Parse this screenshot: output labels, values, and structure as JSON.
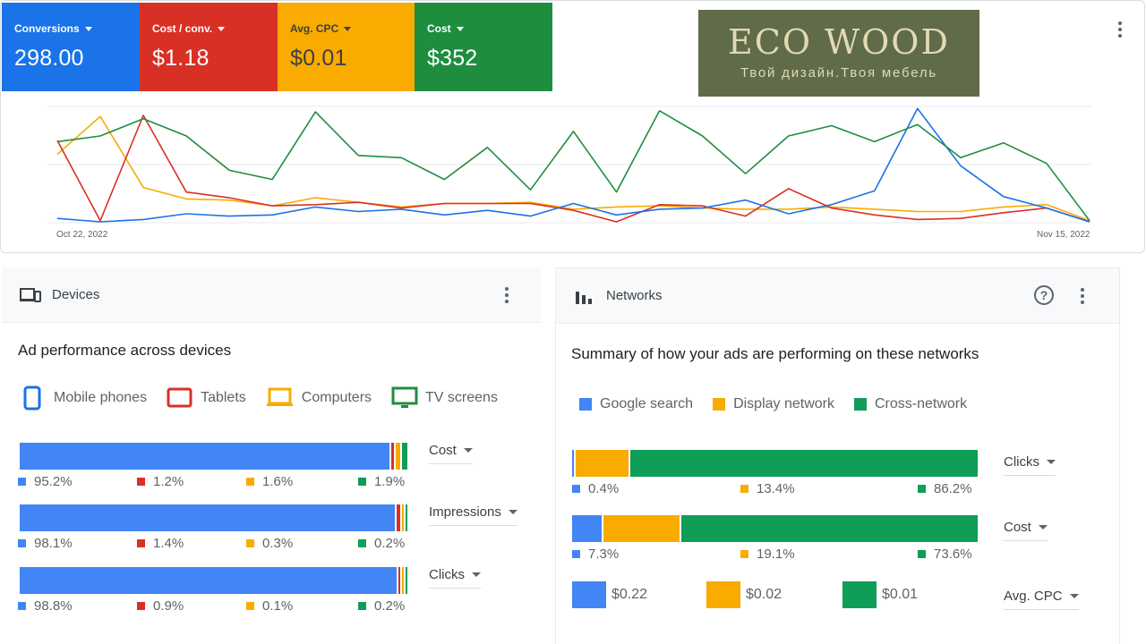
{
  "metrics": {
    "conversions": {
      "label": "Conversions",
      "value": "298.00"
    },
    "cost_per_conv": {
      "label": "Cost / conv.",
      "value": "$1.18"
    },
    "avg_cpc": {
      "label": "Avg. CPC",
      "value": "$0.01"
    },
    "cost": {
      "label": "Cost",
      "value": "$352"
    }
  },
  "logo": {
    "title": "ECO WOOD",
    "tagline": "Твой дизайн.Твоя мебель"
  },
  "chart_data": {
    "type": "line",
    "x_start_label": "Oct 22, 2022",
    "x_end_label": "Nov 15, 2022",
    "ylim": [
      0,
      100
    ],
    "grid": "horizontal",
    "colors": {
      "blue": "#1a73e8",
      "red": "#d93025",
      "yellow": "#f9ab00",
      "green": "#1e8e3e"
    },
    "series": [
      {
        "color": "blue",
        "values": [
          3,
          0,
          2,
          7,
          5,
          6,
          13,
          9,
          11,
          6,
          10,
          5,
          16,
          6,
          11,
          12,
          19,
          7,
          15,
          27,
          99,
          49,
          22,
          12,
          0
        ]
      },
      {
        "color": "red",
        "values": [
          71,
          1,
          93,
          26,
          21,
          14,
          15,
          17,
          12,
          16,
          16,
          16,
          10,
          0,
          15,
          14,
          5,
          29,
          12,
          6,
          2,
          3,
          8,
          12,
          0
        ]
      },
      {
        "color": "yellow",
        "values": [
          59,
          92,
          30,
          20,
          19,
          14,
          21,
          17,
          13,
          16,
          16,
          17,
          11,
          13,
          14,
          12,
          11,
          11,
          13,
          11,
          9,
          9,
          13,
          15,
          1
        ]
      },
      {
        "color": "green",
        "values": [
          70,
          75,
          90,
          75,
          45,
          37,
          96,
          58,
          56,
          37,
          65,
          28,
          79,
          26,
          97,
          75,
          42,
          75,
          84,
          70,
          85,
          56,
          69,
          51,
          1
        ]
      }
    ]
  },
  "devices": {
    "header": "Devices",
    "title": "Ad performance across devices",
    "legend": [
      "Mobile phones",
      "Tablets",
      "Computers",
      "TV screens"
    ],
    "rows": [
      {
        "metric": "Cost",
        "values": [
          "95.2%",
          "1.2%",
          "1.6%",
          "1.9%"
        ],
        "fractions": [
          0.952,
          0.012,
          0.016,
          0.019
        ]
      },
      {
        "metric": "Impressions",
        "values": [
          "98.1%",
          "1.4%",
          "0.3%",
          "0.2%"
        ],
        "fractions": [
          0.981,
          0.014,
          0.003,
          0.002
        ]
      },
      {
        "metric": "Clicks",
        "values": [
          "98.8%",
          "0.9%",
          "0.1%",
          "0.2%"
        ],
        "fractions": [
          0.988,
          0.009,
          0.001,
          0.002
        ]
      }
    ]
  },
  "networks": {
    "header": "Networks",
    "title": "Summary of how your ads are performing on these networks",
    "legend": [
      "Google search",
      "Display network",
      "Cross-network"
    ],
    "rows": [
      {
        "metric": "Clicks",
        "values": [
          "0.4%",
          "13.4%",
          "86.2%"
        ],
        "fractions": [
          0.004,
          0.134,
          0.862
        ]
      },
      {
        "metric": "Cost",
        "values": [
          "7.3%",
          "19.1%",
          "73.6%"
        ],
        "fractions": [
          0.073,
          0.191,
          0.736
        ]
      }
    ],
    "cpc": {
      "metric": "Avg. CPC",
      "values": [
        "$0.22",
        "$0.02",
        "$0.01"
      ]
    }
  }
}
